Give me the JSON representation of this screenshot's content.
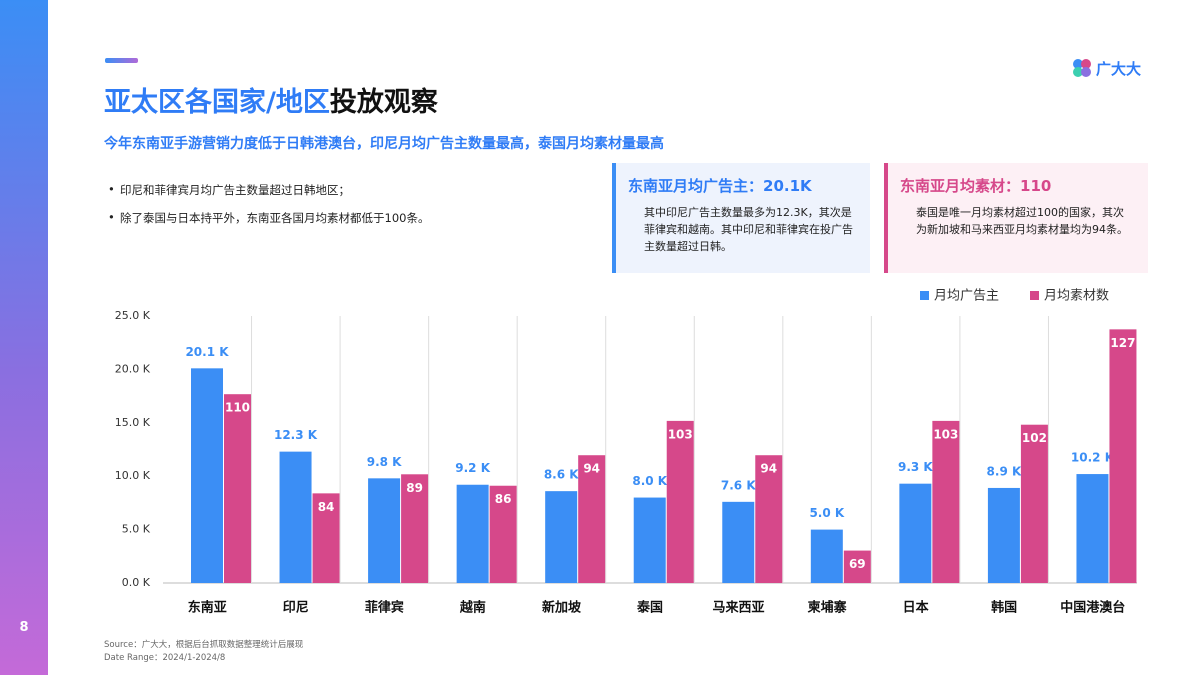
{
  "header": {
    "title_highlight": "亚太区各国家/地区",
    "title_rest": "投放观察",
    "subtitle": "今年东南亚手游营销力度低于日韩港澳台，印尼月均广告主数量最高，泰国月均素材量最高"
  },
  "logo": "广大大",
  "bullets": [
    "印尼和菲律宾月均广告主数量超过日韩地区；",
    "除了泰国与日本持平外，东南亚各国月均素材都低于100条。"
  ],
  "boxes": [
    {
      "title": "东南亚月均广告主：20.1K",
      "body": "其中印尼广告主数量最多为12.3K，其次是菲律宾和越南。其中印尼和菲律宾在投广告主数量超过日韩。"
    },
    {
      "title": "东南亚月均素材：110",
      "body": "泰国是唯一月均素材超过100的国家，其次为新加坡和马来西亚月均素材量均为94条。"
    }
  ],
  "chart_data": {
    "type": "bar",
    "categories": [
      "东南亚",
      "印尼",
      "菲律宾",
      "越南",
      "新加坡",
      "泰国",
      "马来西亚",
      "柬埔寨",
      "日本",
      "韩国",
      "中国港澳台"
    ],
    "series": [
      {
        "name": "月均广告主",
        "color": "#3b8ef5",
        "values": [
          20.1,
          12.3,
          9.8,
          9.2,
          8.6,
          8.0,
          7.6,
          5.0,
          9.3,
          8.9,
          10.2
        ],
        "value_labels": [
          "20.1 K",
          "12.3 K",
          "9.8 K",
          "9.2 K",
          "8.6 K",
          "8.0 K",
          "7.6 K",
          "5.0 K",
          "9.3 K",
          "8.9 K",
          "10.2 K"
        ]
      },
      {
        "name": "月均素材数",
        "color": "#d6488a",
        "axis": "y2",
        "values": [
          110,
          84,
          89,
          86,
          94,
          103,
          94,
          69,
          103,
          102,
          127
        ]
      }
    ],
    "ylim": [
      0,
      25
    ],
    "yticks": [
      {
        "value": 0,
        "label": "0.0 K"
      },
      {
        "value": 5,
        "label": "5.0 K"
      },
      {
        "value": 10,
        "label": "10.0 K"
      },
      {
        "value": 15,
        "label": "15.0 K"
      },
      {
        "value": 20,
        "label": "20.0 K"
      },
      {
        "value": 25,
        "label": "25.0 K"
      }
    ],
    "y2lim": [
      60.5,
      130.5
    ],
    "legend": "top-right"
  },
  "source": [
    "Source：广大大，根据后台抓取数据整理统计后展现",
    "Date Range：2024/1-2024/8"
  ],
  "page_number": "8"
}
